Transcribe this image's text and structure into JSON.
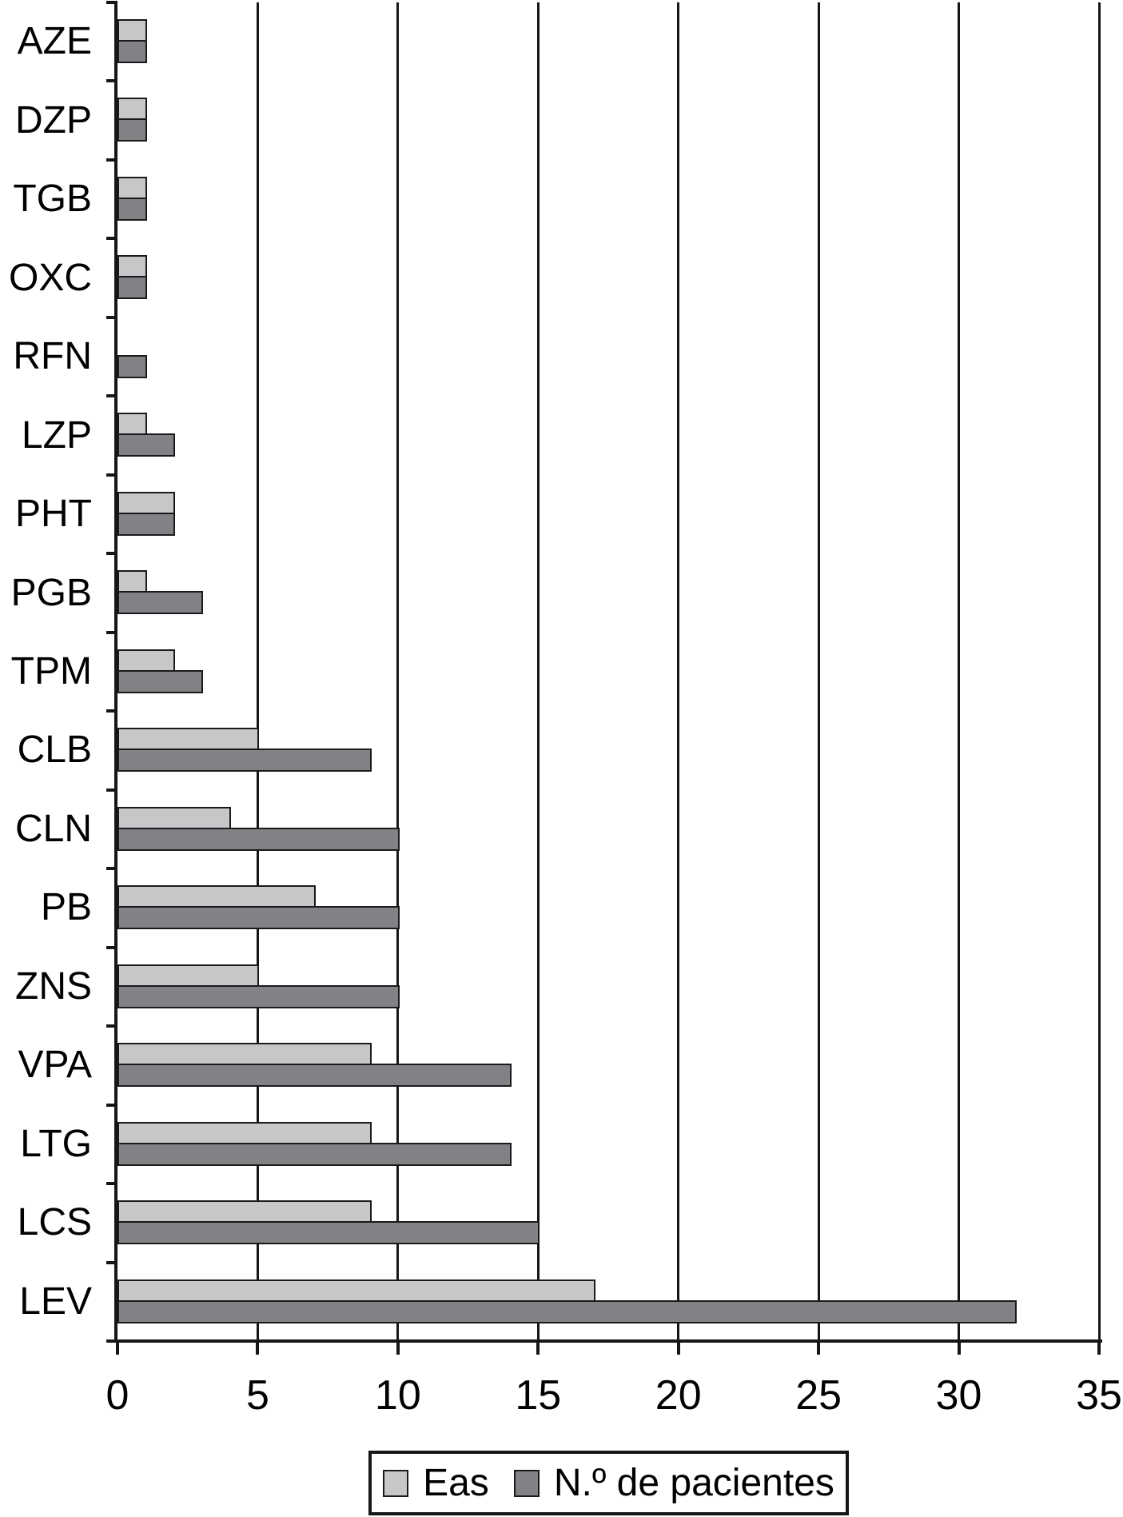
{
  "chart_data": {
    "type": "bar",
    "orientation": "horizontal",
    "title": "",
    "xlabel": "",
    "ylabel": "",
    "categories": [
      "AZE",
      "DZP",
      "TGB",
      "OXC",
      "RFN",
      "LZP",
      "PHT",
      "PGB",
      "TPM",
      "CLB",
      "CLN",
      "PB",
      "ZNS",
      "VPA",
      "LTG",
      "LCS",
      "LEV"
    ],
    "series": [
      {
        "name": "Eas",
        "color": "#c6c7c9",
        "values": [
          1,
          1,
          1,
          1,
          0,
          1,
          2,
          1,
          2,
          5,
          4,
          7,
          5,
          9,
          9,
          9,
          17
        ]
      },
      {
        "name": "N.º de pacientes",
        "color": "#818285",
        "values": [
          1,
          1,
          1,
          1,
          1,
          2,
          2,
          3,
          3,
          9,
          10,
          10,
          10,
          14,
          14,
          15,
          32
        ]
      }
    ],
    "xlim": [
      0,
      35
    ],
    "xticks": [
      0,
      5,
      10,
      15,
      20,
      25,
      30,
      35
    ],
    "grid": "vertical-gridlines-on",
    "legend_position": "bottom-center",
    "line_color": "#161616",
    "background_color": "#ffffff"
  }
}
